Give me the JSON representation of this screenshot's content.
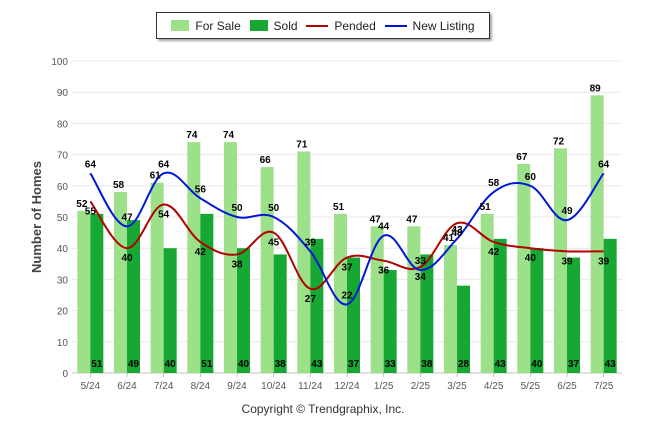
{
  "legend": {
    "for_sale": "For Sale",
    "sold": "Sold",
    "pended": "Pended",
    "new_listing": "New Listing"
  },
  "copyright": "Copyright © Trendgraphix, Inc.",
  "colors": {
    "for_sale": "#9de08a",
    "sold": "#16a832",
    "pended": "#b30000",
    "new_listing": "#0018d6",
    "grid": "#e8e8e8",
    "axis_text": "#555555"
  },
  "chart_data": {
    "type": "bar",
    "categories": [
      "5/24",
      "6/24",
      "7/24",
      "8/24",
      "9/24",
      "10/24",
      "11/24",
      "12/24",
      "1/25",
      "2/25",
      "3/25",
      "4/25",
      "5/25",
      "6/25",
      "7/25"
    ],
    "series": [
      {
        "name": "For Sale",
        "kind": "bar",
        "values": [
          52,
          58,
          61,
          74,
          74,
          66,
          71,
          51,
          47,
          47,
          41,
          51,
          67,
          72,
          89
        ]
      },
      {
        "name": "Sold",
        "kind": "bar",
        "values": [
          51,
          49,
          40,
          51,
          40,
          38,
          43,
          37,
          33,
          38,
          28,
          43,
          40,
          37,
          43
        ]
      },
      {
        "name": "Pended",
        "kind": "line",
        "values": [
          55,
          40,
          54,
          42,
          38,
          45,
          27,
          37,
          36,
          34,
          48,
          42,
          40,
          39,
          39
        ]
      },
      {
        "name": "New Listing",
        "kind": "line",
        "values": [
          64,
          47,
          64,
          56,
          50,
          50,
          39,
          22,
          44,
          33,
          43,
          58,
          60,
          49,
          64
        ]
      }
    ],
    "ylabel": "Number of Homes",
    "xlabel": "",
    "ylim": [
      0,
      100
    ],
    "yticks": [
      0,
      10,
      20,
      30,
      40,
      50,
      60,
      70,
      80,
      90,
      100
    ],
    "grid": true,
    "legend_position": "top-center"
  }
}
